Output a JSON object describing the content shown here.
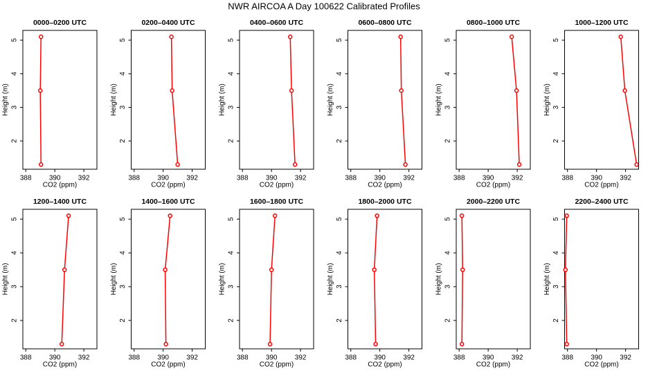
{
  "title": "NWR AIRCOA A  Day 100622  Calibrated Profiles",
  "chart_data": [
    {
      "type": "line",
      "title": "0000–0200 UTC",
      "x_label": "CO2 (ppm)",
      "y_label": "Height (m)",
      "color": "#ff0000",
      "x": [
        389.05,
        389.0,
        389.05
      ],
      "y": [
        5.1,
        3.5,
        1.3
      ],
      "xlim": [
        387.8,
        392.9
      ],
      "ylim": [
        1.16,
        5.29
      ],
      "xticks": [
        388,
        390,
        392
      ],
      "yticks": [
        2,
        3,
        4,
        5
      ]
    },
    {
      "type": "line",
      "title": "0200–0400 UTC",
      "x_label": "CO2 (ppm)",
      "y_label": "Height (m)",
      "color": "#ff0000",
      "x": [
        390.57,
        390.62,
        391.0
      ],
      "y": [
        5.1,
        3.5,
        1.3
      ],
      "xlim": [
        387.8,
        392.9
      ],
      "ylim": [
        1.16,
        5.29
      ],
      "xticks": [
        388,
        390,
        392
      ],
      "yticks": [
        2,
        3,
        4,
        5
      ]
    },
    {
      "type": "line",
      "title": "0400–0600 UTC",
      "x_label": "CO2 (ppm)",
      "y_label": "Height (m)",
      "color": "#ff0000",
      "x": [
        391.29,
        391.38,
        391.62
      ],
      "y": [
        5.1,
        3.5,
        1.3
      ],
      "xlim": [
        387.8,
        392.9
      ],
      "ylim": [
        1.16,
        5.29
      ],
      "xticks": [
        388,
        390,
        392
      ],
      "yticks": [
        2,
        3,
        4,
        5
      ]
    },
    {
      "type": "line",
      "title": "0600–0800 UTC",
      "x_label": "CO2 (ppm)",
      "y_label": "Height (m)",
      "color": "#ff0000",
      "x": [
        391.43,
        391.48,
        391.76
      ],
      "y": [
        5.1,
        3.5,
        1.3
      ],
      "xlim": [
        387.8,
        392.9
      ],
      "ylim": [
        1.16,
        5.29
      ],
      "xticks": [
        388,
        390,
        392
      ],
      "yticks": [
        2,
        3,
        4,
        5
      ]
    },
    {
      "type": "line",
      "title": "0800–1000 UTC",
      "x_label": "CO2 (ppm)",
      "y_label": "Height (m)",
      "color": "#ff0000",
      "x": [
        391.62,
        391.95,
        392.14
      ],
      "y": [
        5.1,
        3.5,
        1.3
      ],
      "xlim": [
        387.8,
        392.9
      ],
      "ylim": [
        1.16,
        5.29
      ],
      "xticks": [
        388,
        390,
        392
      ],
      "yticks": [
        2,
        3,
        4,
        5
      ]
    },
    {
      "type": "line",
      "title": "1000–1200 UTC",
      "x_label": "CO2 (ppm)",
      "y_label": "Height (m)",
      "color": "#ff0000",
      "x": [
        391.67,
        391.95,
        392.76
      ],
      "y": [
        5.1,
        3.5,
        1.3
      ],
      "xlim": [
        387.8,
        392.9
      ],
      "ylim": [
        1.16,
        5.29
      ],
      "xticks": [
        388,
        390,
        392
      ],
      "yticks": [
        2,
        3,
        4,
        5
      ]
    },
    {
      "type": "line",
      "title": "1200–1400 UTC",
      "x_label": "CO2 (ppm)",
      "y_label": "Height (m)",
      "color": "#ff0000",
      "x": [
        390.95,
        390.67,
        390.48
      ],
      "y": [
        5.1,
        3.5,
        1.3
      ],
      "xlim": [
        387.8,
        392.9
      ],
      "ylim": [
        1.16,
        5.29
      ],
      "xticks": [
        388,
        390,
        392
      ],
      "yticks": [
        2,
        3,
        4,
        5
      ]
    },
    {
      "type": "line",
      "title": "1400–1600 UTC",
      "x_label": "CO2 (ppm)",
      "y_label": "Height (m)",
      "color": "#ff0000",
      "x": [
        390.48,
        390.14,
        390.19
      ],
      "y": [
        5.1,
        3.5,
        1.3
      ],
      "xlim": [
        387.8,
        392.9
      ],
      "ylim": [
        1.16,
        5.29
      ],
      "xticks": [
        388,
        390,
        392
      ],
      "yticks": [
        2,
        3,
        4,
        5
      ]
    },
    {
      "type": "line",
      "title": "1600–1800 UTC",
      "x_label": "CO2 (ppm)",
      "y_label": "Height (m)",
      "color": "#ff0000",
      "x": [
        390.24,
        390.0,
        389.9
      ],
      "y": [
        5.1,
        3.5,
        1.3
      ],
      "xlim": [
        387.8,
        392.9
      ],
      "ylim": [
        1.16,
        5.29
      ],
      "xticks": [
        388,
        390,
        392
      ],
      "yticks": [
        2,
        3,
        4,
        5
      ]
    },
    {
      "type": "line",
      "title": "1800–2000 UTC",
      "x_label": "CO2 (ppm)",
      "y_label": "Height (m)",
      "color": "#ff0000",
      "x": [
        389.81,
        389.62,
        389.71
      ],
      "y": [
        5.1,
        3.5,
        1.3
      ],
      "xlim": [
        387.8,
        392.9
      ],
      "ylim": [
        1.16,
        5.29
      ],
      "xticks": [
        388,
        390,
        392
      ],
      "yticks": [
        2,
        3,
        4,
        5
      ]
    },
    {
      "type": "line",
      "title": "2000–2200 UTC",
      "x_label": "CO2 (ppm)",
      "y_label": "Height (m)",
      "color": "#ff0000",
      "x": [
        388.19,
        388.24,
        388.19
      ],
      "y": [
        5.1,
        3.5,
        1.3
      ],
      "xlim": [
        387.8,
        392.9
      ],
      "ylim": [
        1.16,
        5.29
      ],
      "xticks": [
        388,
        390,
        392
      ],
      "yticks": [
        2,
        3,
        4,
        5
      ]
    },
    {
      "type": "line",
      "title": "2200–2400 UTC",
      "x_label": "CO2 (ppm)",
      "y_label": "Height (m)",
      "color": "#ff0000",
      "x": [
        387.95,
        387.86,
        387.95
      ],
      "y": [
        5.1,
        3.5,
        1.3
      ],
      "xlim": [
        387.8,
        392.9
      ],
      "ylim": [
        1.16,
        5.29
      ],
      "xticks": [
        388,
        390,
        392
      ],
      "yticks": [
        2,
        3,
        4,
        5
      ]
    }
  ]
}
